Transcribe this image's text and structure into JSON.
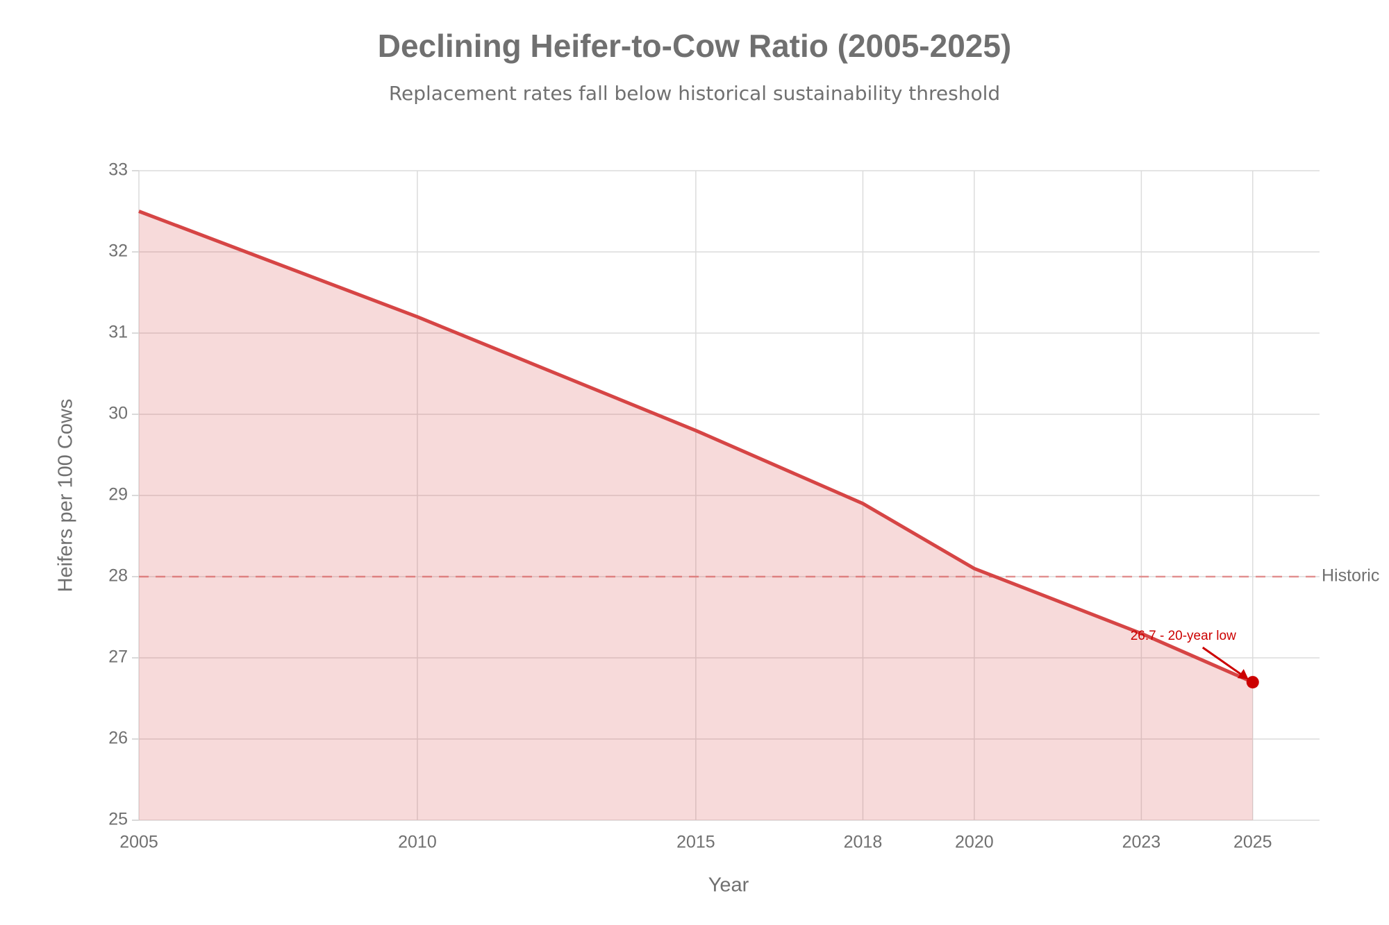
{
  "chart_data": {
    "type": "area",
    "title": "Declining Heifer-to-Cow Ratio (2005-2025)",
    "subtitle": "Replacement rates fall below historical sustainability threshold",
    "x_label": "Year",
    "y_label": "Heifers per 100 Cows",
    "x": [
      2005,
      2010,
      2015,
      2018,
      2020,
      2023,
      2025
    ],
    "series": [
      {
        "name": "Heifers per 100 Cows",
        "color": "#d64545",
        "values": [
          32.5,
          31.2,
          29.8,
          28.9,
          28.1,
          27.3,
          26.7
        ]
      }
    ],
    "xlim": [
      2005,
      2026.2
    ],
    "xticks": [
      2005,
      2010,
      2015,
      2018,
      2020,
      2023,
      2025
    ],
    "ylim": [
      25,
      33
    ],
    "yticks": [
      25,
      26,
      27,
      28,
      29,
      30,
      31,
      32,
      33
    ],
    "grid": true,
    "threshold": {
      "value": 28,
      "label": "Historic",
      "color": "#e07a7a"
    },
    "annotation": {
      "text": "26.7 - 20-year low",
      "color": "#cc0000"
    }
  }
}
